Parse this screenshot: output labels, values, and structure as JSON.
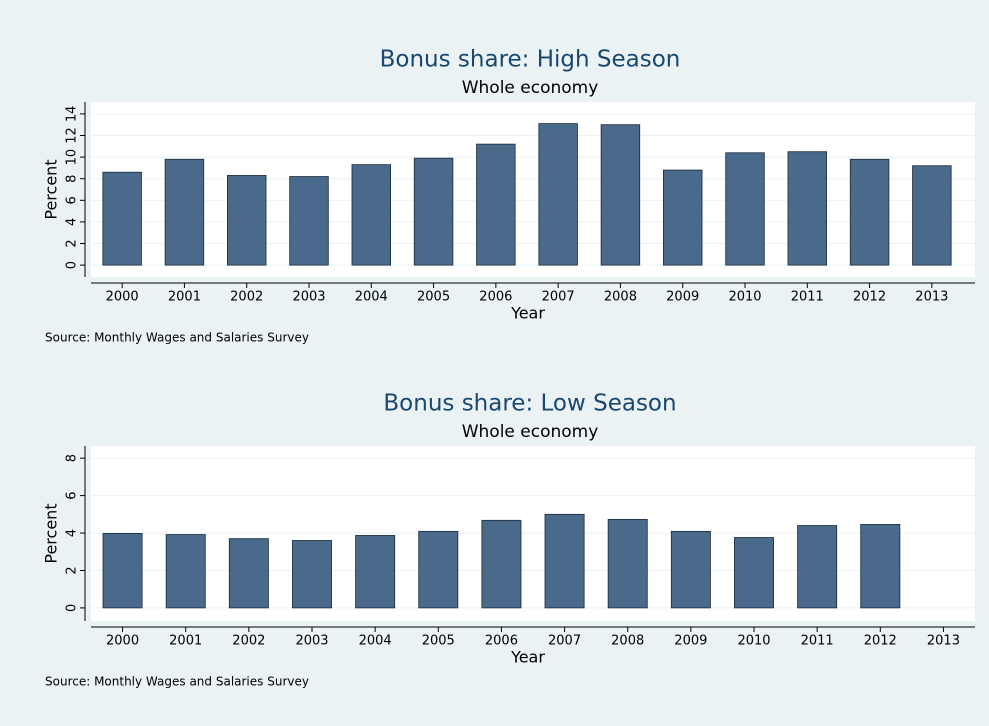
{
  "chart_data": [
    {
      "type": "bar",
      "title": "Bonus share: High Season",
      "subtitle": "Whole economy",
      "y_label": "Percent",
      "x_label": "Year",
      "note": "Source: Monthly Wages and Salaries Survey",
      "categories": [
        "2000",
        "2001",
        "2002",
        "2003",
        "2004",
        "2005",
        "2006",
        "2007",
        "2008",
        "2009",
        "2010",
        "2011",
        "2012",
        "2013"
      ],
      "values": [
        8.6,
        9.8,
        8.3,
        8.2,
        9.3,
        9.9,
        11.2,
        13.1,
        13.0,
        8.8,
        10.4,
        10.5,
        9.8,
        9.2
      ],
      "color": "#4a6a8c",
      "ylim": [
        -1.1,
        15.1
      ],
      "yticks": [
        0,
        2,
        4,
        6,
        8,
        10,
        12,
        14
      ],
      "grid": true
    },
    {
      "type": "bar",
      "title": "Bonus share: Low Season",
      "subtitle": "Whole economy",
      "y_label": "Percent",
      "x_label": "Year",
      "note": "Source: Monthly Wages and Salaries Survey",
      "categories": [
        "2000",
        "2001",
        "2002",
        "2003",
        "2004",
        "2005",
        "2006",
        "2007",
        "2008",
        "2009",
        "2010",
        "2011",
        "2012",
        "2013"
      ],
      "values": [
        3.98,
        3.92,
        3.7,
        3.6,
        3.87,
        4.09,
        4.68,
        5.0,
        4.73,
        4.09,
        3.76,
        4.4,
        4.46,
        null
      ],
      "color": "#4a6a8c",
      "ylim": [
        -0.7,
        8.65
      ],
      "yticks": [
        0,
        2,
        4,
        6,
        8
      ],
      "grid": true
    }
  ]
}
